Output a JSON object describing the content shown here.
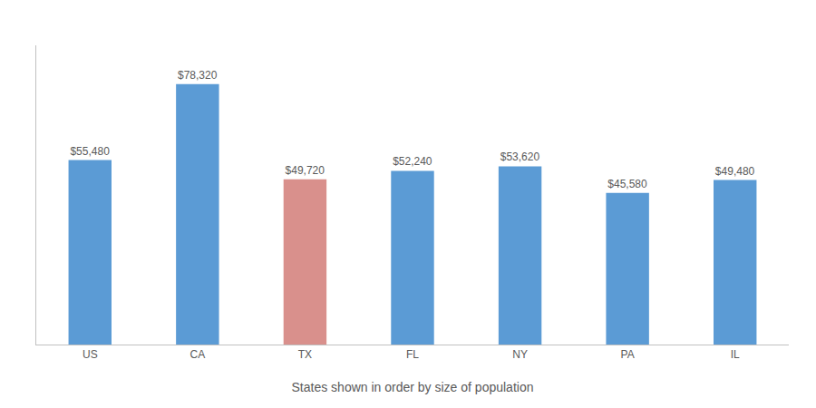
{
  "chart_data": {
    "type": "bar",
    "xlabel": "States shown in order by size of population",
    "categories": [
      "US",
      "CA",
      "TX",
      "FL",
      "NY",
      "PA",
      "IL"
    ],
    "values": [
      55480,
      78320,
      49720,
      52240,
      53620,
      45580,
      49480
    ],
    "value_labels": [
      "$55,480",
      "$78,320",
      "$49,720",
      "$52,240",
      "$53,620",
      "$45,580",
      "$49,480"
    ],
    "colors": [
      "#5b9bd5",
      "#5b9bd5",
      "#d9908c",
      "#5b9bd5",
      "#5b9bd5",
      "#5b9bd5",
      "#5b9bd5"
    ],
    "ylim": [
      0,
      90000
    ],
    "data_labels": true,
    "tick_labels": "x",
    "grid": false
  }
}
